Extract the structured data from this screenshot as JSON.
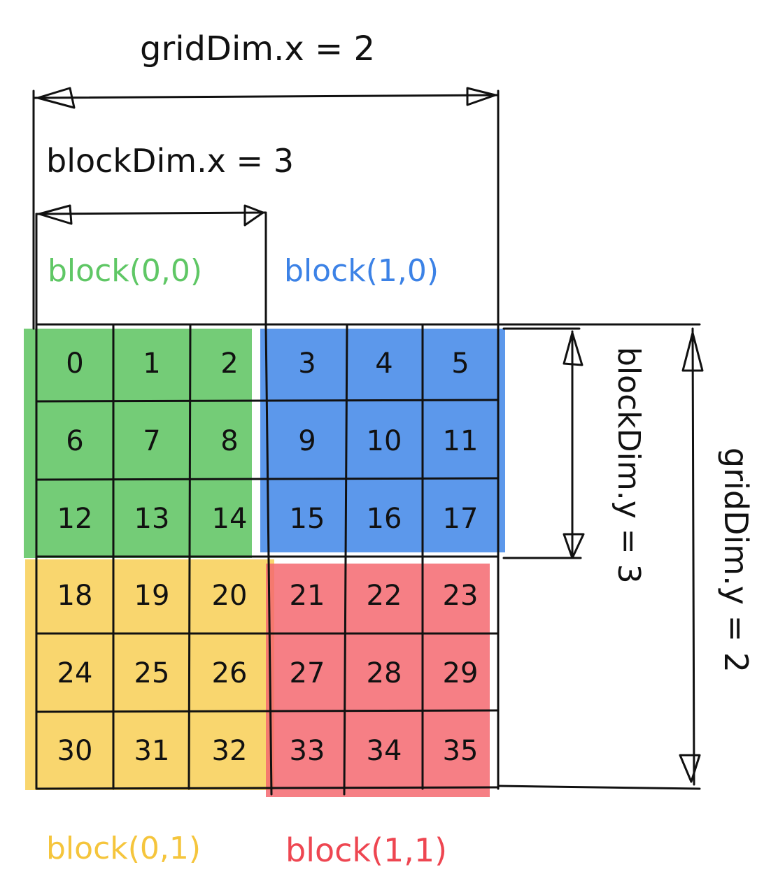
{
  "labels": {
    "grid_dim_x": "gridDim.x = 2",
    "block_dim_x": "blockDim.x = 3",
    "block_dim_y": "blockDim.y = 3",
    "grid_dim_y": "gridDim.y = 2"
  },
  "blocks": [
    {
      "label": "block(0,0)",
      "color": "#5cc35f",
      "label_color": "#5fc765"
    },
    {
      "label": "block(1,0)",
      "color": "#3f86e8",
      "label_color": "#3c82e6"
    },
    {
      "label": "block(0,1)",
      "color": "#f8cf55",
      "label_color": "#f5c53c"
    },
    {
      "label": "block(1,1)",
      "color": "#f56870",
      "label_color": "#ee4651"
    }
  ],
  "cells": [
    [
      "0",
      "1",
      "2",
      "3",
      "4",
      "5"
    ],
    [
      "6",
      "7",
      "8",
      "9",
      "10",
      "11"
    ],
    [
      "12",
      "13",
      "14",
      "15",
      "16",
      "17"
    ],
    [
      "18",
      "19",
      "20",
      "21",
      "22",
      "23"
    ],
    [
      "24",
      "25",
      "26",
      "27",
      "28",
      "29"
    ],
    [
      "30",
      "31",
      "32",
      "33",
      "34",
      "35"
    ]
  ]
}
